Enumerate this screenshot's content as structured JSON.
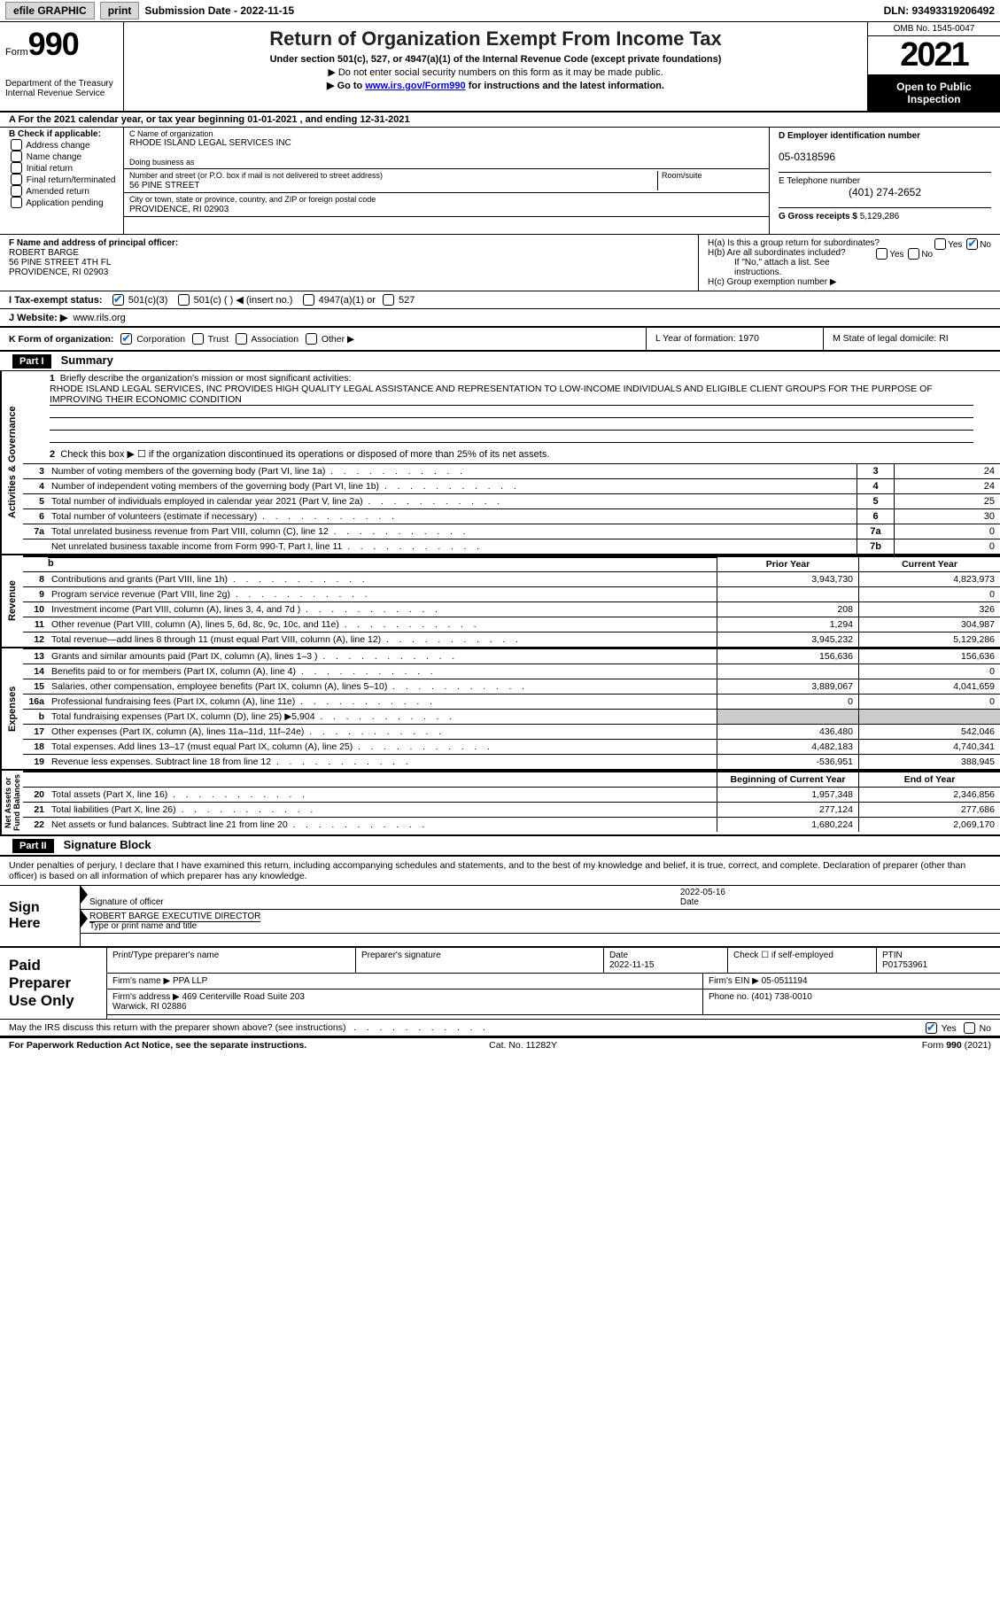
{
  "topbar": {
    "efile": "efile GRAPHIC",
    "print": "print",
    "submission_label": "Submission Date - 2022-11-15",
    "dln": "DLN: 93493319206492"
  },
  "header": {
    "form_prefix": "Form",
    "form_number": "990",
    "dept": "Department of the Treasury\nInternal Revenue Service",
    "title": "Return of Organization Exempt From Income Tax",
    "sub": "Under section 501(c), 527, or 4947(a)(1) of the Internal Revenue Code (except private foundations)",
    "note1": "▶ Do not enter social security numbers on this form as it may be made public.",
    "note2_pre": "▶ Go to ",
    "note2_link": "www.irs.gov/Form990",
    "note2_post": " for instructions and the latest information.",
    "omb": "OMB No. 1545-0047",
    "year": "2021",
    "inspect": "Open to Public Inspection"
  },
  "period": "A For the 2021 calendar year, or tax year beginning 01-01-2021    , and ending 12-31-2021",
  "sectionB": {
    "label": "B Check if applicable:",
    "items": [
      "Address change",
      "Name change",
      "Initial return",
      "Final return/terminated",
      "Amended return",
      "Application pending"
    ]
  },
  "sectionC": {
    "name_lbl": "C Name of organization",
    "name": "RHODE ISLAND LEGAL SERVICES INC",
    "dba_lbl": "Doing business as",
    "dba": "",
    "street_lbl": "Number and street (or P.O. box if mail is not delivered to street address)",
    "room_lbl": "Room/suite",
    "street": "56 PINE STREET",
    "city_lbl": "City or town, state or province, country, and ZIP or foreign postal code",
    "city": "PROVIDENCE, RI  02903"
  },
  "sectionD": {
    "ein_lbl": "D Employer identification number",
    "ein": "05-0318596",
    "phone_lbl": "E Telephone number",
    "phone": "(401) 274-2652",
    "gross_lbl": "G Gross receipts $",
    "gross": "5,129,286"
  },
  "sectionF": {
    "lbl": "F Name and address of principal officer:",
    "name": "ROBERT BARGE",
    "addr1": "56 PINE STREET 4TH FL",
    "addr2": "PROVIDENCE, RI  02903"
  },
  "sectionH": {
    "ha": "H(a)  Is this a group return for subordinates?",
    "hb": "H(b)  Are all subordinates included?",
    "hb_note": "If \"No,\" attach a list. See instructions.",
    "hc": "H(c)  Group exemption number ▶"
  },
  "taxrow": {
    "lbl": "I  Tax-exempt status:",
    "o1": "501(c)(3)",
    "o2": "501(c) (   ) ◀ (insert no.)",
    "o3": "4947(a)(1) or",
    "o4": "527"
  },
  "website": {
    "lbl": "J  Website: ▶",
    "val": "www.rils.org"
  },
  "krow": {
    "k": "K Form of organization:",
    "corp": "Corporation",
    "trust": "Trust",
    "assoc": "Association",
    "other": "Other ▶",
    "l": "L Year of formation: 1970",
    "m": "M State of legal domicile: RI"
  },
  "part1": {
    "hdr": "Part I",
    "title": "Summary",
    "q1": "Briefly describe the organization's mission or most significant activities:",
    "mission": "RHODE ISLAND LEGAL SERVICES, INC PROVIDES HIGH QUALITY LEGAL ASSISTANCE AND REPRESENTATION TO LOW-INCOME INDIVIDUALS AND ELIGIBLE CLIENT GROUPS FOR THE PURPOSE OF IMPROVING THEIR ECONOMIC CONDITION",
    "q2": "Check this box ▶ ☐  if the organization discontinued its operations or disposed of more than 25% of its net assets.",
    "rows": [
      {
        "n": "3",
        "t": "Number of voting members of the governing body (Part VI, line 1a)",
        "bx": "3",
        "v": "24"
      },
      {
        "n": "4",
        "t": "Number of independent voting members of the governing body (Part VI, line 1b)",
        "bx": "4",
        "v": "24"
      },
      {
        "n": "5",
        "t": "Total number of individuals employed in calendar year 2021 (Part V, line 2a)",
        "bx": "5",
        "v": "25"
      },
      {
        "n": "6",
        "t": "Total number of volunteers (estimate if necessary)",
        "bx": "6",
        "v": "30"
      },
      {
        "n": "7a",
        "t": "Total unrelated business revenue from Part VIII, column (C), line 12",
        "bx": "7a",
        "v": "0"
      },
      {
        "n": "",
        "t": "Net unrelated business taxable income from Form 990-T, Part I, line 11",
        "bx": "7b",
        "v": "0"
      }
    ],
    "side_act": "Activities & Governance"
  },
  "revenue": {
    "side": "Revenue",
    "hdr_prior": "Prior Year",
    "hdr_curr": "Current Year",
    "rows": [
      {
        "n": "8",
        "t": "Contributions and grants (Part VIII, line 1h)",
        "p": "3,943,730",
        "c": "4,823,973"
      },
      {
        "n": "9",
        "t": "Program service revenue (Part VIII, line 2g)",
        "p": "",
        "c": "0"
      },
      {
        "n": "10",
        "t": "Investment income (Part VIII, column (A), lines 3, 4, and 7d )",
        "p": "208",
        "c": "326"
      },
      {
        "n": "11",
        "t": "Other revenue (Part VIII, column (A), lines 5, 6d, 8c, 9c, 10c, and 11e)",
        "p": "1,294",
        "c": "304,987"
      },
      {
        "n": "12",
        "t": "Total revenue—add lines 8 through 11 (must equal Part VIII, column (A), line 12)",
        "p": "3,945,232",
        "c": "5,129,286"
      }
    ]
  },
  "expenses": {
    "side": "Expenses",
    "rows": [
      {
        "n": "13",
        "t": "Grants and similar amounts paid (Part IX, column (A), lines 1–3 )",
        "p": "156,636",
        "c": "156,636"
      },
      {
        "n": "14",
        "t": "Benefits paid to or for members (Part IX, column (A), line 4)",
        "p": "",
        "c": "0"
      },
      {
        "n": "15",
        "t": "Salaries, other compensation, employee benefits (Part IX, column (A), lines 5–10)",
        "p": "3,889,067",
        "c": "4,041,659"
      },
      {
        "n": "16a",
        "t": "Professional fundraising fees (Part IX, column (A), line 11e)",
        "p": "0",
        "c": "0"
      },
      {
        "n": "b",
        "t": "Total fundraising expenses (Part IX, column (D), line 25) ▶5,904",
        "p": "grey",
        "c": "grey"
      },
      {
        "n": "17",
        "t": "Other expenses (Part IX, column (A), lines 11a–11d, 11f–24e)",
        "p": "436,480",
        "c": "542,046"
      },
      {
        "n": "18",
        "t": "Total expenses. Add lines 13–17 (must equal Part IX, column (A), line 25)",
        "p": "4,482,183",
        "c": "4,740,341"
      },
      {
        "n": "19",
        "t": "Revenue less expenses. Subtract line 18 from line 12",
        "p": "-536,951",
        "c": "388,945"
      }
    ]
  },
  "netassets": {
    "side": "Net Assets or\nFund Balances",
    "hdr_beg": "Beginning of Current Year",
    "hdr_end": "End of Year",
    "rows": [
      {
        "n": "20",
        "t": "Total assets (Part X, line 16)",
        "p": "1,957,348",
        "c": "2,346,856"
      },
      {
        "n": "21",
        "t": "Total liabilities (Part X, line 26)",
        "p": "277,124",
        "c": "277,686"
      },
      {
        "n": "22",
        "t": "Net assets or fund balances. Subtract line 21 from line 20",
        "p": "1,680,224",
        "c": "2,069,170"
      }
    ]
  },
  "part2": {
    "hdr": "Part II",
    "title": "Signature Block",
    "decl": "Under penalties of perjury, I declare that I have examined this return, including accompanying schedules and statements, and to the best of my knowledge and belief, it is true, correct, and complete. Declaration of preparer (other than officer) is based on all information of which preparer has any knowledge."
  },
  "sign": {
    "label": "Sign Here",
    "sig_lbl": "Signature of officer",
    "date": "2022-05-16",
    "date_lbl": "Date",
    "name": "ROBERT BARGE  EXECUTIVE DIRECTOR",
    "name_lbl": "Type or print name and title"
  },
  "prep": {
    "label": "Paid Preparer Use Only",
    "h1": "Print/Type preparer's name",
    "h2": "Preparer's signature",
    "h3": "Date",
    "h3v": "2022-11-15",
    "h4": "Check ☐ if self-employed",
    "h5": "PTIN",
    "h5v": "P01753961",
    "firm_lbl": "Firm's name    ▶",
    "firm": "PPA LLP",
    "ein_lbl": "Firm's EIN ▶",
    "ein": "05-0511194",
    "addr_lbl": "Firm's address ▶",
    "addr": "469 Centerville Road Suite 203\nWarwick, RI  02886",
    "phone_lbl": "Phone no.",
    "phone": "(401) 738-0010"
  },
  "discuss": {
    "text": "May the IRS discuss this return with the preparer shown above? (see instructions)",
    "yes": "Yes",
    "no": "No"
  },
  "foot": {
    "l": "For Paperwork Reduction Act Notice, see the separate instructions.",
    "m": "Cat. No. 11282Y",
    "r": "Form 990 (2021)"
  }
}
